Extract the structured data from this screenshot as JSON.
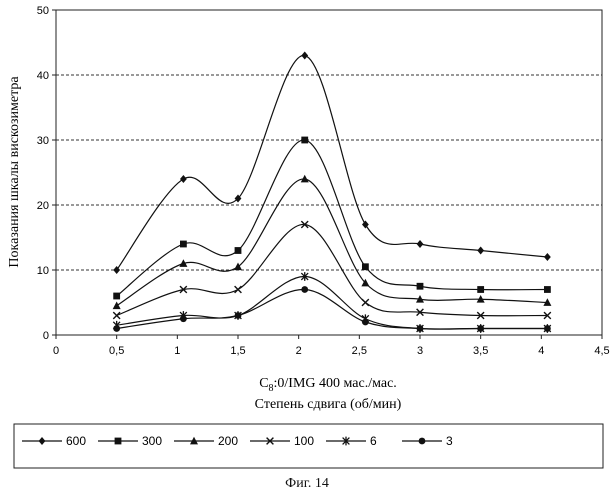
{
  "chart_data": {
    "type": "line",
    "title": "",
    "ylabel": "Показания шкалы вискозиметра",
    "xlabel_line1": "C8:0/IMG 400 мас./мас.",
    "xlabel_line2": "Степень сдвига (об/мин)",
    "xlim": [
      0,
      4.5
    ],
    "ylim": [
      0,
      50
    ],
    "x_ticks": [
      0,
      0.5,
      1,
      1.5,
      2,
      2.5,
      3,
      3.5,
      4,
      4.5
    ],
    "x_tick_labels": [
      "0",
      "0,5",
      "1",
      "1,5",
      "2",
      "2,5",
      "3",
      "3,5",
      "4",
      "4,5"
    ],
    "y_ticks": [
      0,
      10,
      20,
      30,
      40,
      50
    ],
    "y_tick_labels": [
      "0",
      "10",
      "20",
      "30",
      "40",
      "50"
    ],
    "grid": "horizontal-dashed",
    "legend_position": "bottom",
    "x": [
      0.5,
      1.05,
      1.5,
      2.05,
      2.55,
      3,
      3.5,
      4.05
    ],
    "series": [
      {
        "name": "600",
        "marker": "diamond",
        "values": [
          10,
          24,
          21,
          43,
          17,
          14,
          13,
          12
        ]
      },
      {
        "name": "300",
        "marker": "square",
        "values": [
          6,
          14,
          13,
          30,
          10.5,
          7.5,
          7,
          7
        ]
      },
      {
        "name": "200",
        "marker": "triangle",
        "values": [
          4.5,
          11,
          10.5,
          24,
          8,
          5.5,
          5.5,
          5
        ]
      },
      {
        "name": "100",
        "marker": "cross",
        "values": [
          3,
          7,
          7,
          17,
          5,
          3.5,
          3,
          3
        ]
      },
      {
        "name": "6",
        "marker": "star",
        "values": [
          1.5,
          3,
          3,
          9,
          2.5,
          1,
          1,
          1
        ]
      },
      {
        "name": "3",
        "marker": "circle",
        "values": [
          1,
          2.5,
          3,
          7,
          2,
          1,
          1,
          1
        ]
      }
    ]
  },
  "caption": "Фиг. 14"
}
